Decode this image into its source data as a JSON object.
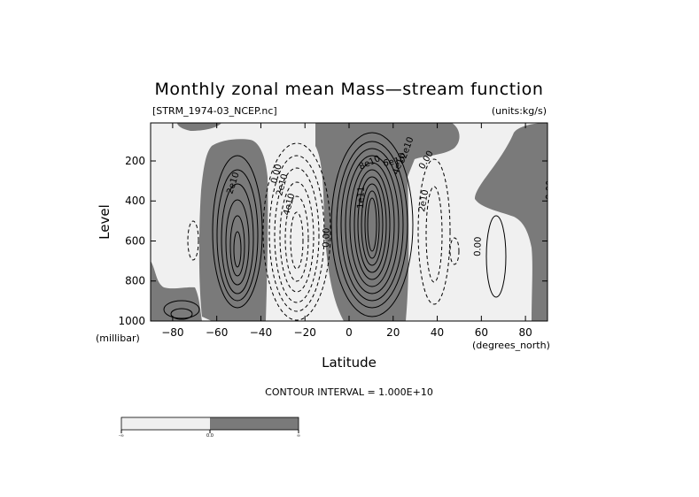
{
  "chart_data": {
    "type": "contour",
    "title": "Monthly zonal mean Mass—stream function",
    "file_label": "[STRM_1974-03_NCEP.nc]",
    "units_label": "(units:kg/s)",
    "xlabel": "Latitude",
    "ylabel": "Level",
    "x_units": "(degrees_north)",
    "y_units": "(millibar)",
    "xlim": [
      -90,
      90
    ],
    "ylim": [
      1000,
      10
    ],
    "x_ticks": [
      "-80",
      "-60",
      "-40",
      "-20",
      "0",
      "20",
      "40",
      "60",
      "80"
    ],
    "y_ticks": [
      "200",
      "400",
      "600",
      "800",
      "1000"
    ],
    "contour_interval_text": "CONTOUR INTERVAL = 1.000E+10",
    "contour_interval": 10000000000.0,
    "contour_labels": [
      "2e10",
      "2e10",
      "4e10",
      "0.00",
      "0.00",
      "1e11",
      "8e10",
      "6e10",
      "4e10",
      "2e10",
      "0.00",
      "2e10",
      "0.00",
      "0.00"
    ],
    "cells": [
      {
        "lat": -50,
        "center_pressure": 650,
        "sign": "positive",
        "max_estimate": 70000000000.0
      },
      {
        "lat": -25,
        "center_pressure": 600,
        "sign": "negative",
        "min_estimate": -60000000000.0
      },
      {
        "lat": 12,
        "center_pressure": 500,
        "sign": "positive",
        "max_estimate": 130000000000.0
      },
      {
        "lat": 40,
        "center_pressure": 550,
        "sign": "negative",
        "min_estimate": -30000000000.0
      },
      {
        "lat": 75,
        "center_pressure": 600,
        "sign": "positive",
        "max_estimate": 10000000000.0
      }
    ],
    "legend": {
      "labels": [
        "-∞",
        "0.0",
        "∞"
      ],
      "colors": [
        "#f0f0f0",
        "#7a7a7a"
      ]
    },
    "colors": {
      "positive_fill": "#7a7a7a",
      "negative_fill": "#f0f0f0",
      "line": "#000000"
    }
  }
}
